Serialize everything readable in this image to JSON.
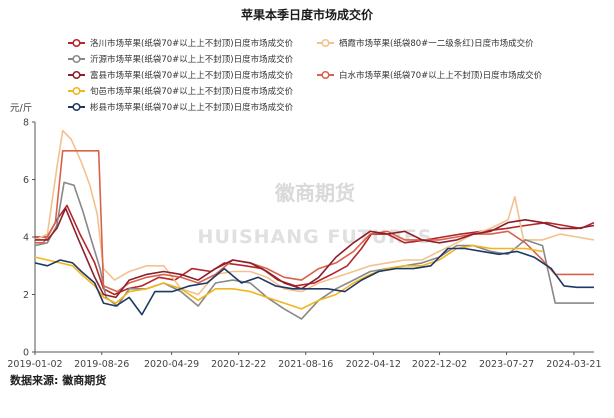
{
  "chart_data": {
    "type": "line",
    "title": "苹果本季日度市场成交价",
    "ylabel": "元/斤",
    "ylim": [
      0,
      8
    ],
    "yticks": [
      0,
      2,
      4,
      6,
      8
    ],
    "xlim": [
      "2019-01-02",
      "2024-05-31"
    ],
    "xticks": [
      "2019-01-02",
      "2019-08-26",
      "2020-04-29",
      "2020-12-22",
      "2021-08-16",
      "2022-04-12",
      "2022-12-02",
      "2023-07-27",
      "2024-03-21"
    ],
    "grid": false,
    "legend_position": "top",
    "series": [
      {
        "name": "洛川市场苹果(纸袋70#以上上不封顶)日度市场成交价",
        "color": "#b3262c",
        "points": [
          [
            "2019-01-02",
            4.0
          ],
          [
            "2019-02-15",
            4.0
          ],
          [
            "2019-03-20",
            4.6
          ],
          [
            "2019-04-25",
            5.1
          ],
          [
            "2019-06-10",
            4.1
          ],
          [
            "2019-08-01",
            3.1
          ],
          [
            "2019-09-01",
            2.2
          ],
          [
            "2019-10-10",
            2.0
          ],
          [
            "2019-11-25",
            2.2
          ],
          [
            "2020-01-15",
            2.3
          ],
          [
            "2020-03-15",
            2.6
          ],
          [
            "2020-05-10",
            2.5
          ],
          [
            "2020-07-10",
            2.9
          ],
          [
            "2020-09-15",
            2.8
          ],
          [
            "2020-11-01",
            3.1
          ],
          [
            "2021-01-15",
            3.0
          ],
          [
            "2021-03-15",
            2.9
          ],
          [
            "2021-05-10",
            2.5
          ],
          [
            "2021-07-10",
            2.3
          ],
          [
            "2021-09-15",
            2.4
          ],
          [
            "2021-11-15",
            2.7
          ],
          [
            "2022-01-10",
            3.0
          ],
          [
            "2022-03-01",
            3.6
          ],
          [
            "2022-04-05",
            4.1
          ],
          [
            "2022-06-01",
            4.1
          ],
          [
            "2022-08-01",
            3.8
          ],
          [
            "2022-10-15",
            3.9
          ],
          [
            "2022-12-15",
            4.0
          ],
          [
            "2023-02-15",
            4.1
          ],
          [
            "2023-05-01",
            4.2
          ],
          [
            "2023-07-27",
            4.3
          ],
          [
            "2023-10-01",
            4.4
          ],
          [
            "2023-12-15",
            4.5
          ],
          [
            "2024-02-15",
            4.4
          ],
          [
            "2024-04-15",
            4.3
          ],
          [
            "2024-05-31",
            4.5
          ]
        ]
      },
      {
        "name": "栖霞市场苹果(纸袋80#一二级条红)日度市场成交价",
        "color": "#f2c28e",
        "points": [
          [
            "2019-01-02",
            3.9
          ],
          [
            "2019-02-15",
            4.1
          ],
          [
            "2019-03-20",
            6.4
          ],
          [
            "2019-04-10",
            7.7
          ],
          [
            "2019-05-10",
            7.4
          ],
          [
            "2019-06-15",
            6.6
          ],
          [
            "2019-07-15",
            5.8
          ],
          [
            "2019-08-10",
            4.8
          ],
          [
            "2019-09-01",
            2.9
          ],
          [
            "2019-10-10",
            2.5
          ],
          [
            "2019-12-01",
            2.8
          ],
          [
            "2020-02-01",
            3.0
          ],
          [
            "2020-04-01",
            3.0
          ],
          [
            "2020-06-01",
            2.2
          ],
          [
            "2020-08-01",
            2.0
          ],
          [
            "2020-10-01",
            2.7
          ],
          [
            "2020-12-01",
            2.8
          ],
          [
            "2021-02-01",
            2.8
          ],
          [
            "2021-04-01",
            2.6
          ],
          [
            "2021-06-01",
            2.2
          ],
          [
            "2021-08-01",
            2.1
          ],
          [
            "2021-10-01",
            2.4
          ],
          [
            "2021-12-01",
            2.6
          ],
          [
            "2022-02-01",
            2.8
          ],
          [
            "2022-04-01",
            3.0
          ],
          [
            "2022-06-01",
            3.1
          ],
          [
            "2022-08-01",
            3.2
          ],
          [
            "2022-10-01",
            3.2
          ],
          [
            "2022-12-01",
            3.5
          ],
          [
            "2023-02-01",
            3.8
          ],
          [
            "2023-04-01",
            4.1
          ],
          [
            "2023-06-01",
            4.3
          ],
          [
            "2023-08-01",
            4.6
          ],
          [
            "2023-08-25",
            5.4
          ],
          [
            "2023-09-25",
            3.9
          ],
          [
            "2023-12-01",
            3.9
          ],
          [
            "2024-02-01",
            4.1
          ],
          [
            "2024-04-01",
            4.0
          ],
          [
            "2024-05-31",
            3.9
          ]
        ]
      },
      {
        "name": "沂源市场苹果(纸袋70#以上上不封顶)日度市场成交价",
        "color": "#888888",
        "points": [
          [
            "2019-01-02",
            3.7
          ],
          [
            "2019-02-15",
            3.8
          ],
          [
            "2019-03-20",
            4.4
          ],
          [
            "2019-04-15",
            5.9
          ],
          [
            "2019-05-20",
            5.8
          ],
          [
            "2019-06-20",
            4.9
          ],
          [
            "2019-07-20",
            3.9
          ],
          [
            "2019-08-20",
            2.9
          ],
          [
            "2019-09-10",
            1.9
          ],
          [
            "2019-10-20",
            1.6
          ],
          [
            "2019-12-01",
            2.2
          ],
          [
            "2020-02-01",
            2.2
          ],
          [
            "2020-04-01",
            2.4
          ],
          [
            "2020-06-01",
            2.1
          ],
          [
            "2020-08-01",
            1.6
          ],
          [
            "2020-10-01",
            2.4
          ],
          [
            "2020-12-01",
            2.5
          ],
          [
            "2021-02-01",
            2.4
          ],
          [
            "2021-04-01",
            1.9
          ],
          [
            "2021-06-01",
            1.5
          ],
          [
            "2021-08-01",
            1.15
          ],
          [
            "2021-10-01",
            1.8
          ],
          [
            "2021-12-01",
            2.2
          ],
          [
            "2022-02-01",
            2.5
          ],
          [
            "2022-04-01",
            2.8
          ],
          [
            "2022-06-01",
            2.9
          ],
          [
            "2022-08-01",
            3.0
          ],
          [
            "2022-10-01",
            3.1
          ],
          [
            "2022-12-01",
            3.3
          ],
          [
            "2023-02-01",
            3.7
          ],
          [
            "2023-04-01",
            3.7
          ],
          [
            "2023-06-01",
            3.5
          ],
          [
            "2023-08-01",
            3.4
          ],
          [
            "2023-10-01",
            3.9
          ],
          [
            "2023-12-01",
            3.7
          ],
          [
            "2024-01-15",
            1.7
          ],
          [
            "2024-03-01",
            1.7
          ],
          [
            "2024-05-31",
            1.7
          ]
        ]
      },
      {
        "name": "白水市场苹果(纸袋70#以上上不封顶)日度市场成交价",
        "color": "#d9634a",
        "points": [
          [
            "2019-01-02",
            3.8
          ],
          [
            "2019-02-01",
            3.8
          ],
          [
            "2019-03-15",
            4.5
          ],
          [
            "2019-04-10",
            7.0
          ],
          [
            "2019-05-15",
            7.0
          ],
          [
            "2019-06-15",
            7.0
          ],
          [
            "2019-07-15",
            7.0
          ],
          [
            "2019-08-15",
            7.0
          ],
          [
            "2019-09-01",
            2.3
          ],
          [
            "2019-10-20",
            2.1
          ],
          [
            "2019-12-01",
            2.4
          ],
          [
            "2020-02-01",
            2.6
          ],
          [
            "2020-04-01",
            2.7
          ],
          [
            "2020-06-01",
            2.6
          ],
          [
            "2020-08-01",
            2.4
          ],
          [
            "2020-10-01",
            2.7
          ],
          [
            "2020-12-01",
            3.2
          ],
          [
            "2021-02-01",
            3.1
          ],
          [
            "2021-04-01",
            2.9
          ],
          [
            "2021-06-01",
            2.6
          ],
          [
            "2021-08-01",
            2.5
          ],
          [
            "2021-10-01",
            2.9
          ],
          [
            "2021-12-01",
            3.1
          ],
          [
            "2022-02-01",
            3.5
          ],
          [
            "2022-04-01",
            4.1
          ],
          [
            "2022-06-01",
            4.2
          ],
          [
            "2022-08-01",
            3.9
          ],
          [
            "2022-10-01",
            3.9
          ],
          [
            "2022-12-01",
            3.9
          ],
          [
            "2023-02-01",
            4.0
          ],
          [
            "2023-04-01",
            4.1
          ],
          [
            "2023-06-01",
            4.1
          ],
          [
            "2023-08-01",
            4.2
          ],
          [
            "2023-10-01",
            3.8
          ],
          [
            "2023-12-01",
            3.2
          ],
          [
            "2024-01-15",
            2.7
          ],
          [
            "2024-03-01",
            2.7
          ],
          [
            "2024-05-31",
            2.7
          ]
        ]
      },
      {
        "name": "富县市场苹果(纸袋70#以上上不封顶)日度市场成交价",
        "color": "#8c1f2c",
        "points": [
          [
            "2019-01-02",
            3.9
          ],
          [
            "2019-02-15",
            3.9
          ],
          [
            "2019-03-20",
            4.3
          ],
          [
            "2019-04-20",
            5.0
          ],
          [
            "2019-06-01",
            4.0
          ],
          [
            "2019-08-01",
            2.6
          ],
          [
            "2019-09-01",
            2.0
          ],
          [
            "2019-10-15",
            1.9
          ],
          [
            "2019-12-01",
            2.5
          ],
          [
            "2020-02-01",
            2.7
          ],
          [
            "2020-04-01",
            2.8
          ],
          [
            "2020-06-01",
            2.7
          ],
          [
            "2020-08-01",
            2.5
          ],
          [
            "2020-10-01",
            2.9
          ],
          [
            "2020-12-01",
            3.2
          ],
          [
            "2021-02-01",
            3.1
          ],
          [
            "2021-04-01",
            2.8
          ],
          [
            "2021-06-01",
            2.4
          ],
          [
            "2021-08-01",
            2.2
          ],
          [
            "2021-10-01",
            2.6
          ],
          [
            "2021-12-01",
            3.3
          ],
          [
            "2022-02-01",
            3.8
          ],
          [
            "2022-04-01",
            4.2
          ],
          [
            "2022-06-01",
            4.1
          ],
          [
            "2022-08-01",
            4.2
          ],
          [
            "2022-10-01",
            3.9
          ],
          [
            "2022-12-01",
            3.8
          ],
          [
            "2023-02-01",
            3.9
          ],
          [
            "2023-04-01",
            4.1
          ],
          [
            "2023-06-01",
            4.2
          ],
          [
            "2023-08-01",
            4.5
          ],
          [
            "2023-10-01",
            4.6
          ],
          [
            "2023-12-01",
            4.5
          ],
          [
            "2024-02-01",
            4.3
          ],
          [
            "2024-04-01",
            4.3
          ],
          [
            "2024-05-31",
            4.4
          ]
        ]
      },
      {
        "name": "旬邑市场苹果(纸袋70#以上上不封顶)日度市场成交价",
        "color": "#f2b61c",
        "points": [
          [
            "2019-01-02",
            3.3
          ],
          [
            "2019-02-15",
            3.2
          ],
          [
            "2019-04-01",
            3.1
          ],
          [
            "2019-05-15",
            3.0
          ],
          [
            "2019-06-15",
            2.7
          ],
          [
            "2019-08-01",
            2.3
          ],
          [
            "2019-09-01",
            1.9
          ],
          [
            "2019-10-15",
            1.7
          ],
          [
            "2019-12-01",
            2.1
          ],
          [
            "2020-02-01",
            2.2
          ],
          [
            "2020-04-01",
            2.4
          ],
          [
            "2020-06-01",
            2.2
          ],
          [
            "2020-08-01",
            1.8
          ],
          [
            "2020-10-01",
            2.2
          ],
          [
            "2020-12-01",
            2.2
          ],
          [
            "2021-02-01",
            2.1
          ],
          [
            "2021-04-01",
            1.9
          ],
          [
            "2021-06-01",
            1.7
          ],
          [
            "2021-08-01",
            1.5
          ],
          [
            "2021-10-01",
            1.8
          ],
          [
            "2021-12-01",
            2.0
          ],
          [
            "2022-02-01",
            2.4
          ],
          [
            "2022-04-01",
            2.7
          ],
          [
            "2022-06-01",
            2.9
          ],
          [
            "2022-08-01",
            3.0
          ],
          [
            "2022-10-01",
            3.0
          ],
          [
            "2022-12-01",
            3.2
          ],
          [
            "2023-02-01",
            3.6
          ],
          [
            "2023-04-01",
            3.7
          ],
          [
            "2023-06-01",
            3.6
          ],
          [
            "2023-08-01",
            3.6
          ],
          [
            "2023-10-01",
            3.6
          ],
          [
            "2023-12-01",
            3.5
          ]
        ]
      },
      {
        "name": "彬县市场苹果(纸袋70#以上上不封顶)日度市场成交价",
        "color": "#1f3864",
        "points": [
          [
            "2019-01-02",
            3.1
          ],
          [
            "2019-02-15",
            3.0
          ],
          [
            "2019-04-01",
            3.2
          ],
          [
            "2019-05-15",
            3.1
          ],
          [
            "2019-06-15",
            2.8
          ],
          [
            "2019-08-01",
            2.4
          ],
          [
            "2019-09-01",
            1.7
          ],
          [
            "2019-10-15",
            1.6
          ],
          [
            "2019-12-01",
            1.9
          ],
          [
            "2020-01-15",
            1.3
          ],
          [
            "2020-03-01",
            2.1
          ],
          [
            "2020-05-01",
            2.1
          ],
          [
            "2020-07-01",
            2.3
          ],
          [
            "2020-09-01",
            2.4
          ],
          [
            "2020-11-01",
            2.9
          ],
          [
            "2021-01-01",
            2.4
          ],
          [
            "2021-03-01",
            2.6
          ],
          [
            "2021-05-01",
            2.3
          ],
          [
            "2021-07-01",
            2.2
          ],
          [
            "2021-09-01",
            2.2
          ],
          [
            "2021-11-01",
            2.2
          ],
          [
            "2022-01-01",
            2.1
          ],
          [
            "2022-03-01",
            2.5
          ],
          [
            "2022-05-01",
            2.8
          ],
          [
            "2022-07-01",
            2.9
          ],
          [
            "2022-09-01",
            2.9
          ],
          [
            "2022-11-01",
            3.0
          ],
          [
            "2023-01-01",
            3.6
          ],
          [
            "2023-03-01",
            3.6
          ],
          [
            "2023-05-01",
            3.5
          ],
          [
            "2023-07-01",
            3.4
          ],
          [
            "2023-09-01",
            3.5
          ],
          [
            "2023-11-01",
            3.3
          ],
          [
            "2024-01-01",
            2.9
          ],
          [
            "2024-02-15",
            2.3
          ],
          [
            "2024-04-01",
            2.25
          ],
          [
            "2024-05-31",
            2.25
          ]
        ]
      }
    ],
    "watermark": {
      "cn": "徽商期货",
      "en": "HUISHANG FUTURES"
    },
    "source": "数据来源: 徽商期货"
  }
}
